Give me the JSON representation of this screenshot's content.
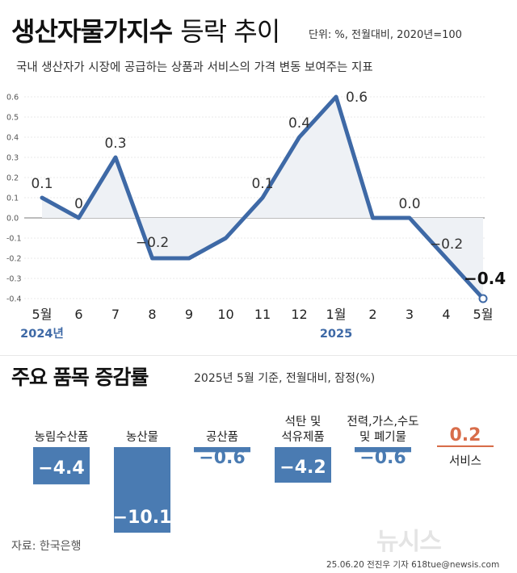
{
  "header": {
    "title_bold": "생산자물가지수",
    "title_light": "등락 추이",
    "unit": "단위: %, 전월대비, 2020년=100",
    "subtitle": "국내 생산자가 시장에 공급하는 상품과 서비스의 가격 변동 보여주는 지표"
  },
  "section2": {
    "title": "주요 품목 증감률",
    "note": "2025년 5월 기준, 전월대비, 잠정(%)"
  },
  "footer": {
    "source": "자료: 한국은행",
    "logo": "뉴시스",
    "credit": "25.06.20 전진우 기자 618tue@newsis.com"
  },
  "colors": {
    "line": "#3e69a6",
    "bar": "#4a7bb2",
    "positive": "#d86d4a",
    "fill": "#eef1f5"
  },
  "chart_data": [
    {
      "type": "line",
      "categories": [
        "5월",
        "6",
        "7",
        "8",
        "9",
        "10",
        "11",
        "12",
        "1월",
        "2",
        "3",
        "4",
        "5월"
      ],
      "year_labels": [
        {
          "index": 0,
          "label": "2024년"
        },
        {
          "index": 8,
          "label": "2025"
        }
      ],
      "values": [
        0.1,
        0,
        0.3,
        -0.2,
        -0.2,
        -0.1,
        0.1,
        0.4,
        0.6,
        0,
        0,
        -0.2,
        -0.4
      ],
      "data_labels": [
        {
          "index": 0,
          "text": "0.1"
        },
        {
          "index": 1,
          "text": "0"
        },
        {
          "index": 2,
          "text": "0.3"
        },
        {
          "index": 3,
          "text": "−0.2"
        },
        {
          "index": 6,
          "text": "0.1"
        },
        {
          "index": 7,
          "text": "0.4"
        },
        {
          "index": 8,
          "text": "0.6"
        },
        {
          "index": 10,
          "text": "0.0"
        },
        {
          "index": 11,
          "text": "−0.2"
        },
        {
          "index": 12,
          "text": "−0.4",
          "emphasis": true
        }
      ],
      "yticks": [
        "0.6",
        "0.5",
        "0.4",
        "0.3",
        "0.2",
        "0.1",
        "0.0",
        "-0.1",
        "-0.2",
        "-0.3",
        "-0.4"
      ],
      "ylim": [
        -0.4,
        0.6
      ]
    },
    {
      "type": "bar",
      "categories": [
        [
          "농림수산품"
        ],
        [
          "농산물"
        ],
        [
          "공산품"
        ],
        [
          "석탄 및",
          "석유제품"
        ],
        [
          "전력,가스,수도",
          "및 폐기물"
        ],
        [
          "서비스"
        ]
      ],
      "values": [
        -4.4,
        -10.1,
        -0.6,
        -4.2,
        -0.6,
        0.2
      ],
      "value_labels": [
        "−4.4",
        "−10.1",
        "−0.6",
        "−4.2",
        "−0.6",
        "0.2"
      ]
    }
  ]
}
